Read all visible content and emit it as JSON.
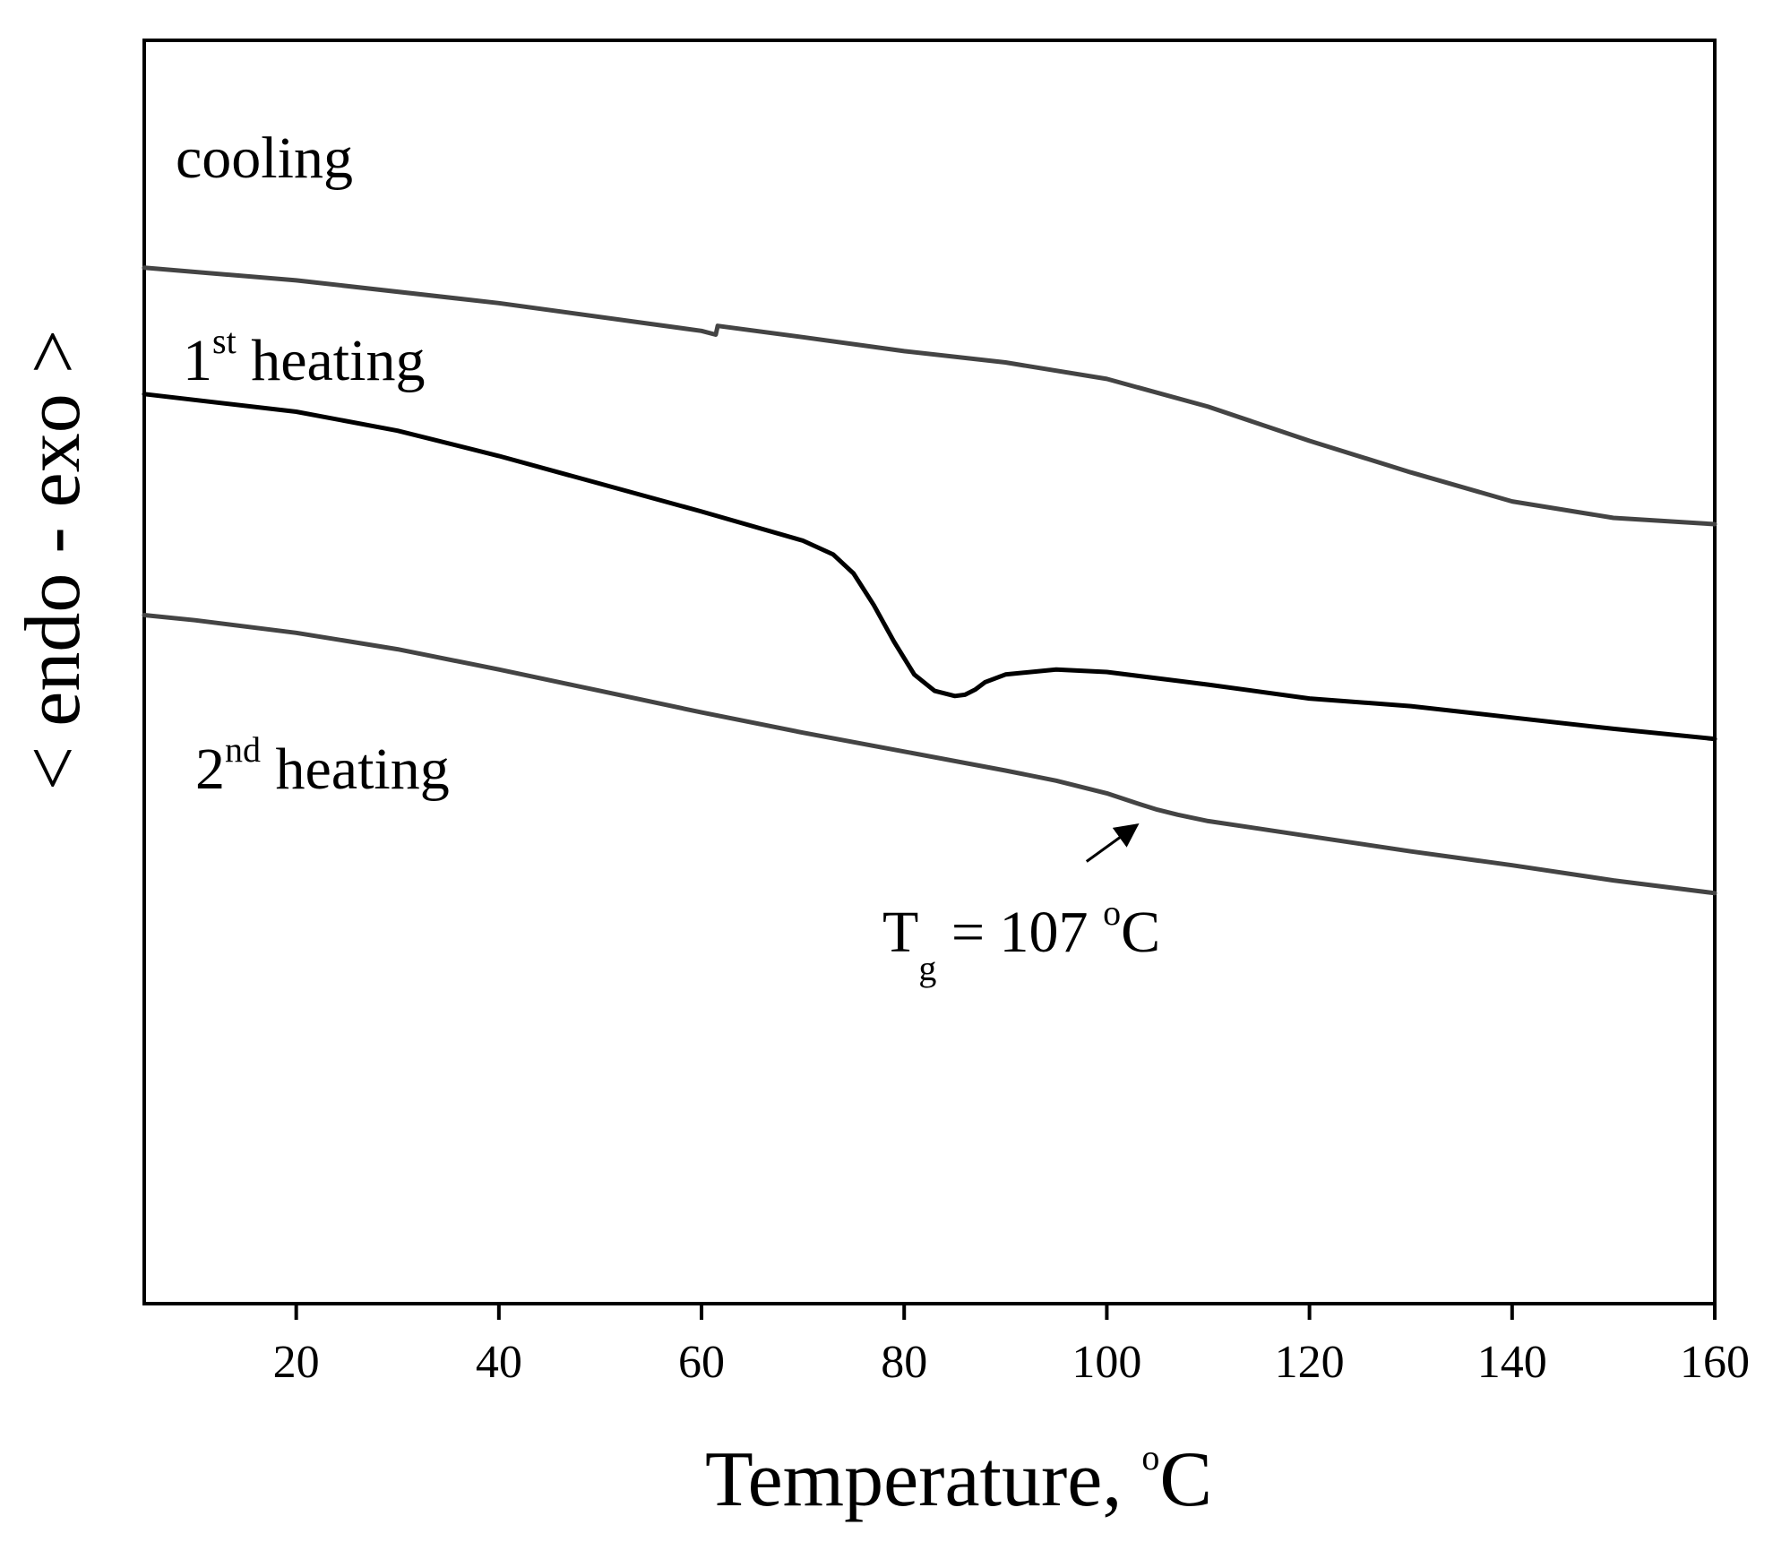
{
  "chart_data": {
    "type": "line",
    "title": "",
    "xlabel": "Temperature, ",
    "xlabel_unit_sup": "o",
    "xlabel_unit": "C",
    "ylabel": "< endo - exo >",
    "xlim": [
      5,
      160
    ],
    "ylim": [
      0,
      100
    ],
    "xticks": [
      20,
      40,
      60,
      80,
      100,
      120,
      140,
      160
    ],
    "y_ticks_shown": false,
    "grid": false,
    "series": [
      {
        "name": "cooling",
        "label_main": "cooling",
        "label_sup": "",
        "label_rest": "",
        "color": "#444444",
        "x": [
          5,
          20,
          40,
          60,
          61.4,
          61.6,
          70,
          80,
          90,
          100,
          110,
          120,
          130,
          140,
          150,
          160
        ],
        "y": [
          82.0,
          81.0,
          79.2,
          77.0,
          76.7,
          77.4,
          76.5,
          75.4,
          74.5,
          73.2,
          71.0,
          68.3,
          65.8,
          63.5,
          62.2,
          61.7
        ]
      },
      {
        "name": "1st heating",
        "label_main": "1",
        "label_sup": "st",
        "label_rest": " heating",
        "color": "#000000",
        "x": [
          5,
          20,
          30,
          40,
          50,
          60,
          70,
          73,
          75,
          77,
          79,
          81,
          83,
          85,
          86,
          87,
          88,
          90,
          95,
          100,
          110,
          120,
          130,
          140,
          150,
          160
        ],
        "y": [
          72.0,
          70.6,
          69.1,
          67.1,
          64.9,
          62.7,
          60.4,
          59.3,
          57.8,
          55.3,
          52.4,
          49.8,
          48.5,
          48.1,
          48.2,
          48.6,
          49.2,
          49.8,
          50.2,
          50.0,
          49.0,
          47.9,
          47.3,
          46.4,
          45.5,
          44.7
        ]
      },
      {
        "name": "2nd heating",
        "label_main": "2",
        "label_sup": "nd",
        "label_rest": " heating",
        "color": "#444444",
        "x": [
          5,
          10,
          20,
          30,
          40,
          50,
          60,
          70,
          80,
          90,
          95,
          100,
          103,
          105,
          107,
          110,
          115,
          120,
          130,
          140,
          150,
          160
        ],
        "y": [
          54.5,
          54.1,
          53.1,
          51.8,
          50.2,
          48.5,
          46.8,
          45.2,
          43.7,
          42.2,
          41.4,
          40.4,
          39.6,
          39.1,
          38.7,
          38.2,
          37.6,
          37.0,
          35.8,
          34.7,
          33.5,
          32.5
        ]
      }
    ],
    "annotations": [
      {
        "name": "glass-transition",
        "text_main": "T",
        "text_sub": "g",
        "text_rest": " = 107 ",
        "text_sup": "o",
        "text_unit": "C",
        "arrow_from": [
          98,
          35.0
        ],
        "arrow_to": [
          103,
          37.9
        ],
        "text_anchor": [
          107,
          29.0
        ]
      }
    ]
  }
}
